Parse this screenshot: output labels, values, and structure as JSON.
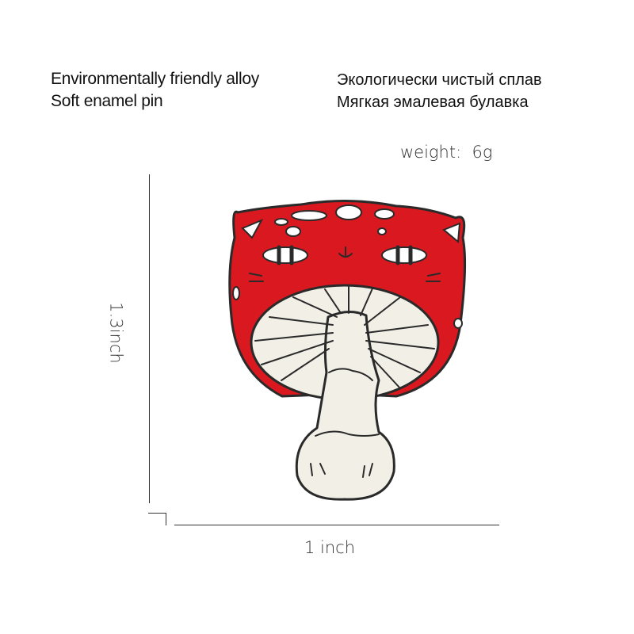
{
  "specs": {
    "english": [
      "Environmentally friendly alloy",
      "Soft enamel pin"
    ],
    "russian": [
      "Экологически чистый сплав",
      "Мягкая эмалевая булавка"
    ],
    "weight": "weight:  6g"
  },
  "dimensions": {
    "height_label": "1.3inch",
    "width_label": "1 inch"
  },
  "product": {
    "name": "mushroom-cat-enamel-pin",
    "colors": {
      "cap": "#d9191f",
      "gills": "#f2f0e6",
      "outline": "#2a2a2a"
    }
  }
}
